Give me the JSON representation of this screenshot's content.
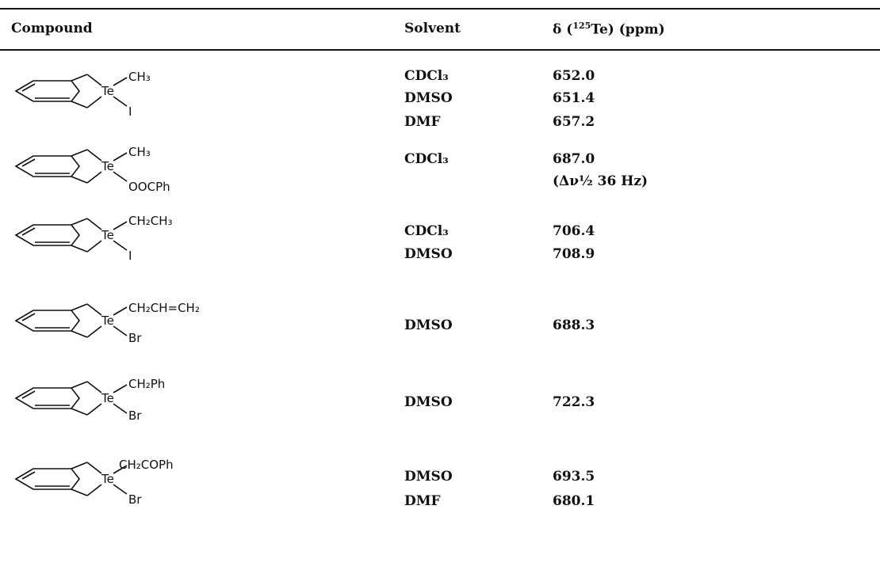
{
  "table": {
    "headers": {
      "compound": "Compound",
      "solvent": "Solvent",
      "shift_prefix": "δ (",
      "shift_isotope": "125",
      "shift_suffix": "Te) (ppm)"
    },
    "rows": [
      {
        "substituent": "CH₃",
        "anion": "I",
        "entries": [
          {
            "solvent": "CDCl₃",
            "shift": "652.0"
          },
          {
            "solvent": "DMSO",
            "shift": "651.4"
          },
          {
            "solvent": "DMF",
            "shift": "657.2"
          }
        ]
      },
      {
        "substituent": "CH₃",
        "anion": "OOCPh",
        "entries": [
          {
            "solvent": "CDCl₃",
            "shift": "687.0"
          },
          {
            "solvent": "",
            "shift": "(Δν½ 36 Hz)"
          }
        ]
      },
      {
        "substituent": "CH₂CH₃",
        "anion": "I",
        "entries": [
          {
            "solvent": "CDCl₃",
            "shift": "706.4"
          },
          {
            "solvent": "DMSO",
            "shift": "708.9"
          }
        ]
      },
      {
        "substituent": "CH₂CH=CH₂",
        "anion": "Br",
        "entries": [
          {
            "solvent": "DMSO",
            "shift": "688.3"
          }
        ]
      },
      {
        "substituent": "CH₂Ph",
        "anion": "Br",
        "entries": [
          {
            "solvent": "DMSO",
            "shift": "722.3"
          }
        ]
      },
      {
        "substituent": "CH₂COPh",
        "anion": "Br",
        "entries": [
          {
            "solvent": "DMSO",
            "shift": "693.5"
          },
          {
            "solvent": "DMF",
            "shift": "680.1"
          }
        ]
      }
    ],
    "atom_label": "Te"
  }
}
